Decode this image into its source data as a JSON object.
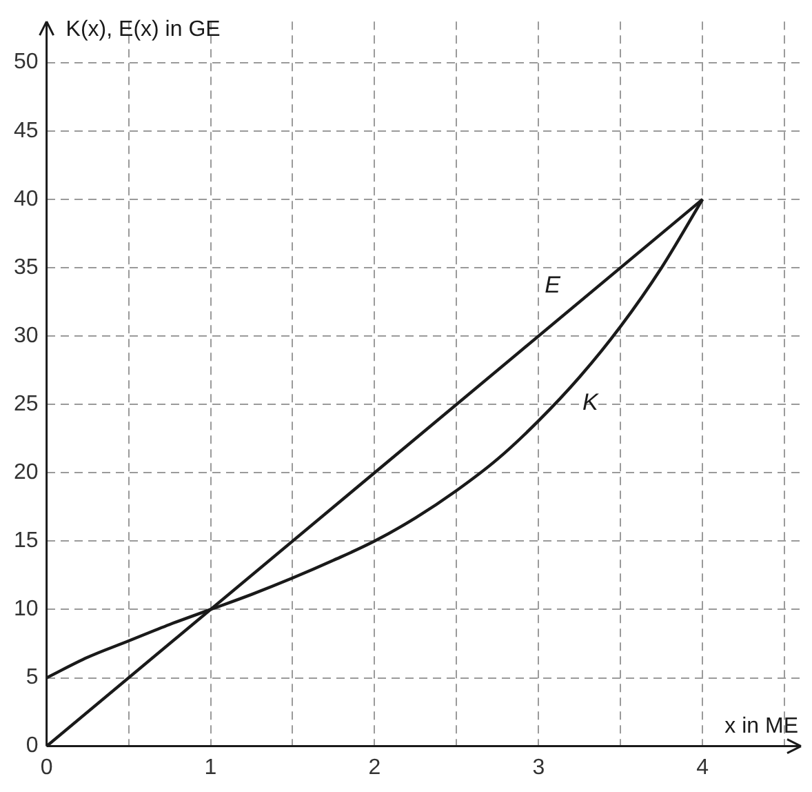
{
  "chart_data": {
    "type": "line",
    "xlabel": "x in ME",
    "ylabel": "K(x), E(x) in GE",
    "x": [
      0,
      0.25,
      0.5,
      0.75,
      1,
      1.25,
      1.5,
      1.75,
      2,
      2.25,
      2.5,
      2.75,
      3,
      3.25,
      3.5,
      3.75,
      4
    ],
    "series": [
      {
        "name": "E",
        "color": "#1a1a1a",
        "x": [
          0,
          4
        ],
        "values": [
          0,
          40
        ]
      },
      {
        "name": "K",
        "color": "#1a1a1a",
        "values": [
          5,
          6.5,
          7.7,
          8.9,
          10,
          11.1,
          12.3,
          13.6,
          15,
          16.7,
          18.7,
          21,
          23.8,
          27,
          30.7,
          35,
          40
        ]
      }
    ],
    "xlim": [
      0,
      4.6
    ],
    "ylim": [
      0,
      53
    ],
    "xticks": [
      0,
      {
        "value": 0.5,
        "label": null
      },
      1,
      {
        "value": 1.5,
        "label": null
      },
      2,
      {
        "value": 2.5,
        "label": null
      },
      3,
      {
        "value": 3.5,
        "label": null
      },
      4,
      {
        "value": 4.5,
        "label": null
      }
    ],
    "yticks": [
      0,
      5,
      10,
      15,
      20,
      25,
      30,
      35,
      40,
      45,
      50
    ],
    "grid": true,
    "legend": false,
    "marker": "none",
    "line_style": "solid"
  }
}
